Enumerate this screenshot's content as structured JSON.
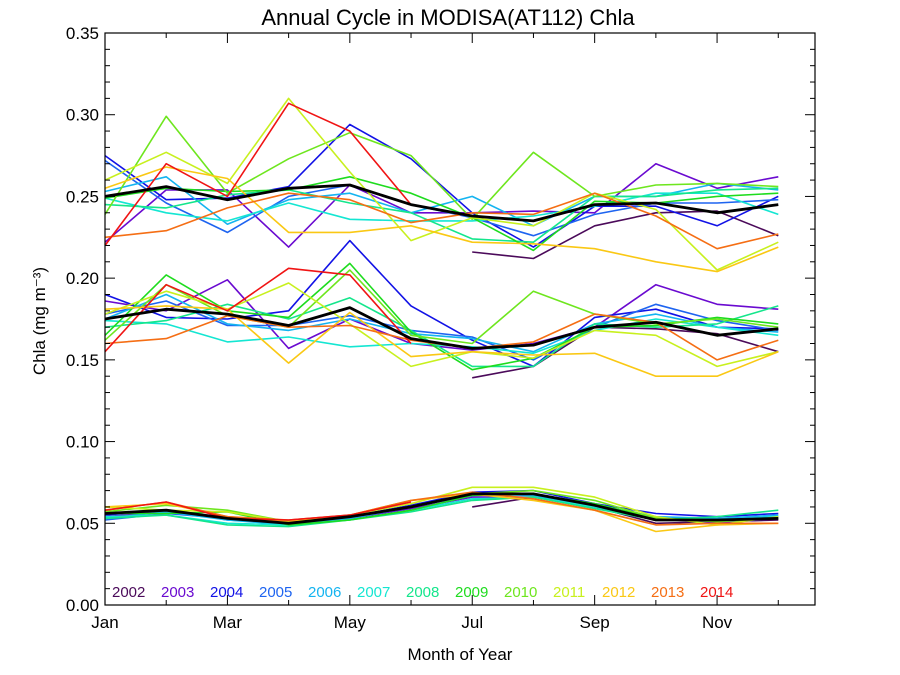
{
  "chart_data": {
    "type": "line",
    "title": "Annual Cycle in MODISA(AT112) Chla",
    "xlabel": "Month of Year",
    "ylabel": "Chla (mg m⁻³)",
    "xlim": [
      1,
      12.6
    ],
    "ylim": [
      0.0,
      0.35
    ],
    "x_ticks": [
      {
        "value": 1,
        "label": "Jan"
      },
      {
        "value": 3,
        "label": "Mar"
      },
      {
        "value": 5,
        "label": "May"
      },
      {
        "value": 7,
        "label": "Jul"
      },
      {
        "value": 9,
        "label": "Sep"
      },
      {
        "value": 11,
        "label": "Nov"
      }
    ],
    "y_ticks": [
      {
        "value": 0.0,
        "label": "0.00"
      },
      {
        "value": 0.05,
        "label": "0.05"
      },
      {
        "value": 0.1,
        "label": "0.10"
      },
      {
        "value": 0.15,
        "label": "0.15"
      },
      {
        "value": 0.2,
        "label": "0.20"
      },
      {
        "value": 0.25,
        "label": "0.25"
      },
      {
        "value": 0.3,
        "label": "0.30"
      },
      {
        "value": 0.35,
        "label": "0.35"
      }
    ],
    "x": [
      1.0,
      2.0,
      3.0,
      4.0,
      5.0,
      6.0,
      7.0,
      8.0,
      9.0,
      10.0,
      11.0,
      12.0
    ],
    "legend_position": "bottom-left inside plot",
    "grid": false,
    "series": [
      {
        "name": "2002",
        "color": "#4b0a5a",
        "values_upper": [
          null,
          null,
          null,
          null,
          null,
          null,
          0.216,
          0.212,
          0.232,
          0.24,
          0.241,
          0.226
        ],
        "values_median": [
          null,
          null,
          null,
          null,
          null,
          null,
          0.139,
          0.146,
          0.17,
          0.169,
          0.166,
          0.155
        ],
        "values_lower": [
          null,
          null,
          null,
          null,
          null,
          null,
          0.06,
          0.066,
          0.06,
          0.05,
          0.051,
          0.052
        ]
      },
      {
        "name": "2003",
        "color": "#6a0ad0",
        "values_upper": [
          0.222,
          0.254,
          0.254,
          0.219,
          0.257,
          0.24,
          0.24,
          0.241,
          0.24,
          0.27,
          0.255,
          0.262
        ],
        "values_median": [
          0.186,
          0.18,
          0.199,
          0.157,
          0.175,
          0.16,
          0.156,
          0.16,
          0.17,
          0.196,
          0.184,
          0.181
        ],
        "values_lower": [
          0.054,
          0.057,
          0.054,
          0.05,
          0.053,
          0.059,
          0.066,
          0.066,
          0.06,
          0.053,
          0.05,
          0.053
        ]
      },
      {
        "name": "2004",
        "color": "#1212e6",
        "values_upper": [
          0.275,
          0.248,
          0.249,
          0.256,
          0.294,
          0.273,
          0.24,
          0.219,
          0.244,
          0.244,
          0.232,
          0.25
        ],
        "values_median": [
          0.19,
          0.176,
          0.175,
          0.18,
          0.223,
          0.183,
          0.162,
          0.146,
          0.176,
          0.181,
          0.17,
          0.169
        ],
        "values_lower": [
          0.055,
          0.058,
          0.052,
          0.05,
          0.054,
          0.061,
          0.069,
          0.07,
          0.062,
          0.056,
          0.054,
          0.056
        ]
      },
      {
        "name": "2005",
        "color": "#1e64f0",
        "values_upper": [
          0.272,
          0.246,
          0.228,
          0.25,
          0.257,
          0.245,
          0.237,
          0.226,
          0.239,
          0.246,
          0.246,
          0.248
        ],
        "values_median": [
          0.178,
          0.186,
          0.171,
          0.171,
          0.177,
          0.168,
          0.164,
          0.15,
          0.17,
          0.184,
          0.174,
          0.168
        ],
        "values_lower": [
          0.052,
          0.056,
          0.053,
          0.051,
          0.053,
          0.06,
          0.067,
          0.068,
          0.06,
          0.053,
          0.052,
          0.054
        ]
      },
      {
        "name": "2006",
        "color": "#14b4f0",
        "values_upper": [
          0.253,
          0.262,
          0.233,
          0.248,
          0.252,
          0.24,
          0.25,
          0.232,
          0.25,
          0.25,
          0.258,
          0.254
        ],
        "values_median": [
          0.175,
          0.19,
          0.172,
          0.168,
          0.175,
          0.166,
          0.163,
          0.155,
          0.172,
          0.178,
          0.17,
          0.167
        ],
        "values_lower": [
          0.053,
          0.057,
          0.052,
          0.049,
          0.053,
          0.06,
          0.068,
          0.067,
          0.061,
          0.054,
          0.053,
          0.055
        ]
      },
      {
        "name": "2007",
        "color": "#14e6d2",
        "values_upper": [
          0.249,
          0.24,
          0.235,
          0.246,
          0.236,
          0.235,
          0.235,
          0.238,
          0.244,
          0.252,
          0.252,
          0.239
        ],
        "values_median": [
          0.174,
          0.172,
          0.161,
          0.164,
          0.158,
          0.16,
          0.158,
          0.154,
          0.168,
          0.175,
          0.17,
          0.165
        ],
        "values_lower": [
          0.054,
          0.055,
          0.05,
          0.049,
          0.052,
          0.058,
          0.065,
          0.066,
          0.06,
          0.053,
          0.052,
          0.054
        ]
      },
      {
        "name": "2008",
        "color": "#14e68c",
        "values_upper": [
          0.245,
          0.243,
          0.251,
          0.254,
          0.246,
          0.24,
          0.224,
          0.222,
          0.25,
          0.25,
          0.254,
          0.255
        ],
        "values_median": [
          0.17,
          0.174,
          0.184,
          0.175,
          0.188,
          0.168,
          0.146,
          0.146,
          0.172,
          0.17,
          0.172,
          0.183
        ],
        "values_lower": [
          0.053,
          0.055,
          0.049,
          0.048,
          0.052,
          0.057,
          0.064,
          0.066,
          0.059,
          0.052,
          0.054,
          0.058
        ]
      },
      {
        "name": "2009",
        "color": "#1edc1e",
        "values_upper": [
          0.249,
          0.255,
          0.253,
          0.254,
          0.262,
          0.252,
          0.237,
          0.217,
          0.247,
          0.246,
          0.25,
          0.252
        ],
        "values_median": [
          0.165,
          0.202,
          0.18,
          0.176,
          0.209,
          0.167,
          0.144,
          0.151,
          0.17,
          0.171,
          0.176,
          0.172
        ],
        "values_lower": [
          0.056,
          0.056,
          0.057,
          0.049,
          0.052,
          0.058,
          0.067,
          0.068,
          0.062,
          0.053,
          0.052,
          0.053
        ]
      },
      {
        "name": "2010",
        "color": "#6ee61e",
        "values_upper": [
          0.239,
          0.299,
          0.252,
          0.273,
          0.289,
          0.275,
          0.236,
          0.277,
          0.25,
          0.257,
          0.258,
          0.256
        ],
        "values_median": [
          0.162,
          0.196,
          0.177,
          0.17,
          0.205,
          0.165,
          0.16,
          0.192,
          0.178,
          0.172,
          0.175,
          0.17
        ],
        "values_lower": [
          0.057,
          0.061,
          0.058,
          0.051,
          0.054,
          0.06,
          0.068,
          0.07,
          0.064,
          0.053,
          0.051,
          0.053
        ]
      },
      {
        "name": "2011",
        "color": "#c8f01e",
        "values_upper": [
          0.26,
          0.277,
          0.258,
          0.31,
          0.265,
          0.223,
          0.237,
          0.232,
          0.252,
          0.242,
          0.205,
          0.222
        ],
        "values_median": [
          0.178,
          0.192,
          0.181,
          0.197,
          0.172,
          0.146,
          0.155,
          0.151,
          0.168,
          0.165,
          0.146,
          0.155
        ],
        "values_lower": [
          0.06,
          0.058,
          0.057,
          0.051,
          0.055,
          0.062,
          0.072,
          0.072,
          0.066,
          0.054,
          0.049,
          0.054
        ]
      },
      {
        "name": "2012",
        "color": "#fac814",
        "values_upper": [
          0.255,
          0.268,
          0.261,
          0.228,
          0.228,
          0.232,
          0.222,
          0.221,
          0.218,
          0.21,
          0.204,
          0.219
        ],
        "values_median": [
          0.181,
          0.183,
          0.181,
          0.148,
          0.179,
          0.152,
          0.155,
          0.153,
          0.154,
          0.14,
          0.14,
          0.155
        ],
        "values_lower": [
          0.06,
          0.062,
          0.054,
          0.051,
          0.055,
          0.064,
          0.068,
          0.064,
          0.058,
          0.045,
          0.049,
          0.05
        ]
      },
      {
        "name": "2013",
        "color": "#f56e14",
        "values_upper": [
          0.225,
          0.229,
          0.243,
          0.252,
          0.248,
          0.234,
          0.24,
          0.239,
          0.252,
          0.238,
          0.218,
          0.227
        ],
        "values_median": [
          0.16,
          0.163,
          0.177,
          0.17,
          0.171,
          0.162,
          0.157,
          0.161,
          0.178,
          0.173,
          0.15,
          0.162
        ],
        "values_lower": [
          0.058,
          0.063,
          0.054,
          0.052,
          0.055,
          0.064,
          0.069,
          0.065,
          0.058,
          0.049,
          0.05,
          0.05
        ]
      },
      {
        "name": "2014",
        "color": "#f01414",
        "values_upper": [
          0.22,
          0.27,
          0.25,
          0.307,
          0.29,
          0.245,
          null,
          null,
          null,
          null,
          null,
          null
        ],
        "values_median": [
          0.155,
          0.196,
          0.18,
          0.206,
          0.202,
          0.16,
          null,
          null,
          null,
          null,
          null,
          null
        ],
        "values_lower": [
          0.058,
          0.063,
          0.053,
          0.052,
          0.055,
          0.063,
          null,
          null,
          null,
          null,
          null,
          null
        ]
      },
      {
        "name": "",
        "color": "#000000",
        "role": "mean",
        "values_upper": [
          0.25,
          0.256,
          0.248,
          0.255,
          0.257,
          0.245,
          0.238,
          0.235,
          0.245,
          0.246,
          0.24,
          0.245
        ],
        "values_median": [
          0.175,
          0.181,
          0.178,
          0.171,
          0.182,
          0.163,
          0.157,
          0.159,
          0.17,
          0.173,
          0.165,
          0.169
        ],
        "values_lower": [
          0.056,
          0.058,
          0.053,
          0.05,
          0.054,
          0.06,
          0.068,
          0.068,
          0.061,
          0.052,
          0.052,
          0.053
        ]
      }
    ]
  }
}
